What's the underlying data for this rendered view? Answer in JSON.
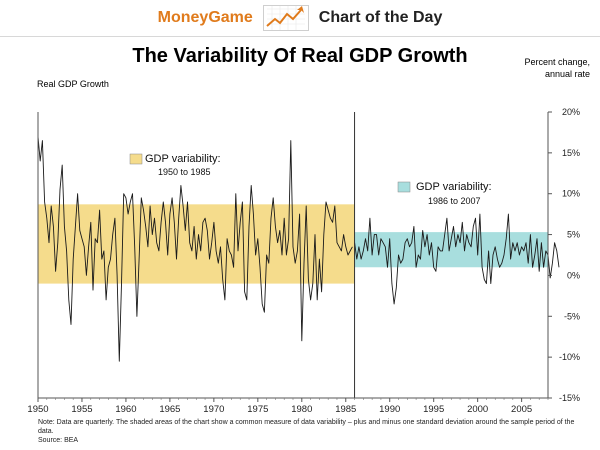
{
  "header": {
    "brand": "MoneyGame",
    "subtitle": "Chart of the Day",
    "logo_icon": "rising-zigzag-arrow-icon",
    "brand_color": "#e07b1c"
  },
  "chart_data": {
    "type": "line",
    "title": "The Variability Of Real GDP Growth",
    "ylabel": "Real GDP Growth",
    "unit_label_line1": "Percent change,",
    "unit_label_line2": "annual rate",
    "xlim": [
      1950,
      2008
    ],
    "ylim": [
      -15,
      20
    ],
    "x_ticks": [
      "1950",
      "1955",
      "1960",
      "1965",
      "1970",
      "1975",
      "1980",
      "1985",
      "1990",
      "1995",
      "2000",
      "2005"
    ],
    "y_ticks": [
      20,
      15,
      10,
      5,
      0,
      -5,
      -10,
      -15
    ],
    "y_tick_labels": [
      "20%",
      "15%",
      "10%",
      "5%",
      "0%",
      "-5%",
      "-10%",
      "-15%"
    ],
    "y_axis_side": "right",
    "grid": false,
    "divider_x": 1986,
    "line_color": "#1a1a1a",
    "bands": [
      {
        "label": "GDP variability:",
        "period": "1950 to 1985",
        "x0": 1950,
        "x1": 1986,
        "ylow": -1.0,
        "yhigh": 8.7,
        "color": "#f5dc8c"
      },
      {
        "label": "GDP variability:",
        "period": "1986 to 2007",
        "x0": 1986,
        "x1": 2008,
        "ylow": 1.0,
        "yhigh": 5.3,
        "color": "#a8dede"
      }
    ],
    "series": [
      {
        "x0": 1950.0,
        "step": 0.25,
        "values": [
          17.0,
          14.0,
          16.5,
          9.0,
          7.0,
          4.0,
          8.5,
          6.0,
          0.5,
          4.0,
          10.5,
          13.5,
          6.0,
          3.0,
          -3.0,
          -6.0,
          2.0,
          6.0,
          10.0,
          5.5,
          4.5,
          3.5,
          0.0,
          3.5,
          6.5,
          -1.8,
          4.5,
          4.0,
          8.0,
          2.0,
          3.0,
          -3.0,
          1.0,
          2.0,
          5.0,
          7.0,
          0.0,
          -10.5,
          -1.0,
          10.0,
          9.5,
          7.5,
          9.0,
          10.0,
          3.5,
          -5.0,
          2.0,
          9.5,
          8.0,
          6.0,
          3.5,
          8.5,
          5.0,
          7.0,
          4.0,
          3.0,
          6.5,
          9.0,
          6.5,
          2.5,
          7.5,
          9.5,
          6.5,
          2.0,
          7.0,
          11.0,
          8.5,
          5.5,
          9.0,
          4.0,
          3.0,
          6.0,
          2.0,
          5.0,
          3.0,
          6.5,
          7.0,
          5.5,
          2.0,
          4.0,
          6.5,
          3.0,
          1.5,
          3.5,
          -0.5,
          -3.0,
          4.5,
          3.0,
          2.5,
          1.0,
          10.0,
          3.0,
          6.5,
          9.0,
          -2.0,
          -3.0,
          6.0,
          11.0,
          7.5,
          2.5,
          4.5,
          1.0,
          -3.5,
          -4.5,
          2.5,
          1.5,
          7.0,
          9.5,
          6.0,
          4.0,
          5.5,
          2.5,
          7.0,
          2.5,
          4.5,
          16.5,
          3.5,
          1.5,
          3.0,
          7.5,
          -8.0,
          1.5,
          8.5,
          -0.5,
          -3.0,
          -1.0,
          5.0,
          -3.0,
          2.0,
          -2.0,
          5.0,
          9.0,
          8.0,
          7.0,
          6.5,
          8.5,
          4.0,
          3.5,
          3.0,
          5.0,
          3.5,
          2.5,
          3.0,
          3.5
        ]
      },
      {
        "x0": 1986.0,
        "step": 0.25,
        "values": [
          4.0,
          2.0,
          3.5,
          2.0,
          3.0,
          4.5,
          3.0,
          7.0,
          2.5,
          5.0,
          5.0,
          2.5,
          4.5,
          4.0,
          3.5,
          1.0,
          4.5,
          -1.0,
          -3.5,
          -1.5,
          2.5,
          1.5,
          2.0,
          4.0,
          4.5,
          3.5,
          4.0,
          6.0,
          1.0,
          2.5,
          2.0,
          5.5,
          3.5,
          5.0,
          2.5,
          4.0,
          1.0,
          0.5,
          3.5,
          3.0,
          3.0,
          5.0,
          7.0,
          3.0,
          4.5,
          6.0,
          3.5,
          5.0,
          4.0,
          6.5,
          3.0,
          5.0,
          4.0,
          3.5,
          6.0,
          7.0,
          2.5,
          7.5,
          1.0,
          -0.5,
          -1.0,
          3.0,
          -1.0,
          2.5,
          3.5,
          2.0,
          1.0,
          1.5,
          2.5,
          4.5,
          7.5,
          2.0,
          4.0,
          3.0,
          4.0,
          2.5,
          3.5,
          3.0,
          4.0,
          1.5,
          5.0,
          1.0,
          2.5,
          4.5,
          0.5,
          4.0,
          1.0,
          3.0,
          2.5,
          -0.3,
          1.5,
          4.0,
          3.0,
          1.0
        ]
      }
    ]
  },
  "footer": {
    "note": "Note: Data are quarterly. The shaded areas of the chart show a common measure of data variability – plus and minus one standard deviation around the sample period of the data.",
    "source": "Source: BEA"
  }
}
